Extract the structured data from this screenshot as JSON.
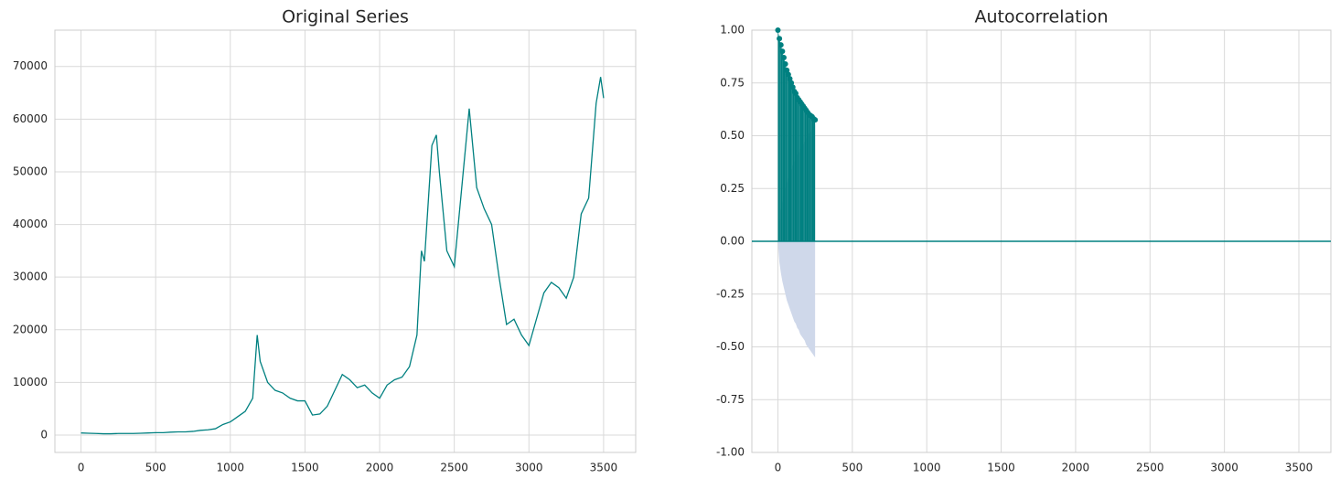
{
  "chart_data": [
    {
      "type": "line",
      "title": "Original Series",
      "color": "#008080",
      "grid": true,
      "x": [
        0,
        50,
        100,
        150,
        200,
        250,
        300,
        350,
        400,
        450,
        500,
        550,
        600,
        650,
        700,
        750,
        800,
        850,
        900,
        950,
        1000,
        1050,
        1100,
        1150,
        1180,
        1200,
        1250,
        1300,
        1350,
        1400,
        1450,
        1500,
        1550,
        1600,
        1650,
        1700,
        1750,
        1800,
        1850,
        1900,
        1950,
        2000,
        2050,
        2100,
        2150,
        2200,
        2250,
        2280,
        2300,
        2350,
        2380,
        2400,
        2450,
        2500,
        2550,
        2600,
        2650,
        2700,
        2750,
        2800,
        2850,
        2900,
        2950,
        3000,
        3050,
        3100,
        3150,
        3200,
        3250,
        3300,
        3350,
        3400,
        3450,
        3480,
        3500
      ],
      "values": [
        400,
        350,
        300,
        250,
        250,
        300,
        300,
        300,
        350,
        400,
        450,
        450,
        550,
        600,
        600,
        700,
        900,
        1000,
        1200,
        2000,
        2500,
        3500,
        4500,
        7000,
        19000,
        14000,
        10000,
        8500,
        8000,
        7000,
        6500,
        6500,
        3800,
        4000,
        5500,
        8500,
        11500,
        10500,
        9000,
        9500,
        8000,
        7000,
        9500,
        10500,
        11000,
        13000,
        19000,
        35000,
        33000,
        55000,
        57000,
        50000,
        35000,
        32000,
        47000,
        62000,
        47000,
        43000,
        40000,
        30000,
        21000,
        22000,
        19000,
        17000,
        22000,
        27000,
        29000,
        28000,
        26000,
        30000,
        42000,
        45000,
        63000,
        68000,
        64000
      ],
      "xlim": [
        -175,
        3715
      ],
      "ylim": [
        -3300,
        76900
      ],
      "xticks": [
        0,
        500,
        1000,
        1500,
        2000,
        2500,
        3000,
        3500
      ],
      "yticks": [
        0,
        10000,
        20000,
        30000,
        40000,
        50000,
        60000,
        70000
      ]
    },
    {
      "type": "acf",
      "title": "Autocorrelation",
      "color": "#008080",
      "band_color": "#cfd8ea",
      "grid": true,
      "hline": 0,
      "x": [
        0,
        10,
        20,
        30,
        40,
        50,
        60,
        70,
        80,
        90,
        100,
        110,
        120,
        130,
        140,
        150,
        160,
        170,
        180,
        190,
        200,
        210,
        220,
        230,
        240,
        250
      ],
      "values": [
        1,
        0.96,
        0.93,
        0.9,
        0.87,
        0.84,
        0.81,
        0.79,
        0.77,
        0.75,
        0.73,
        0.71,
        0.7,
        0.68,
        0.67,
        0.66,
        0.65,
        0.64,
        0.63,
        0.62,
        0.61,
        0.6,
        0.595,
        0.59,
        0.58,
        0.575
      ],
      "confint": [
        0,
        0.1,
        0.15,
        0.19,
        0.22,
        0.25,
        0.28,
        0.3,
        0.32,
        0.34,
        0.36,
        0.38,
        0.39,
        0.41,
        0.42,
        0.44,
        0.45,
        0.46,
        0.47,
        0.49,
        0.5,
        0.51,
        0.52,
        0.53,
        0.54,
        0.55
      ],
      "xlim": [
        -175,
        3715
      ],
      "ylim": [
        -1,
        1
      ],
      "xticks": [
        0,
        500,
        1000,
        1500,
        2000,
        2500,
        3000,
        3500
      ],
      "yticks": [
        {
          "value": -1,
          "label": "-1.00"
        },
        {
          "value": -0.75,
          "label": "-0.75"
        },
        {
          "value": -0.5,
          "label": "-0.50"
        },
        {
          "value": -0.25,
          "label": "-0.25"
        },
        {
          "value": 0,
          "label": "0.00"
        },
        {
          "value": 0.25,
          "label": "0.25"
        },
        {
          "value": 0.5,
          "label": "0.50"
        },
        {
          "value": 0.75,
          "label": "0.75"
        },
        {
          "value": 1,
          "label": "1.00"
        }
      ]
    }
  ]
}
